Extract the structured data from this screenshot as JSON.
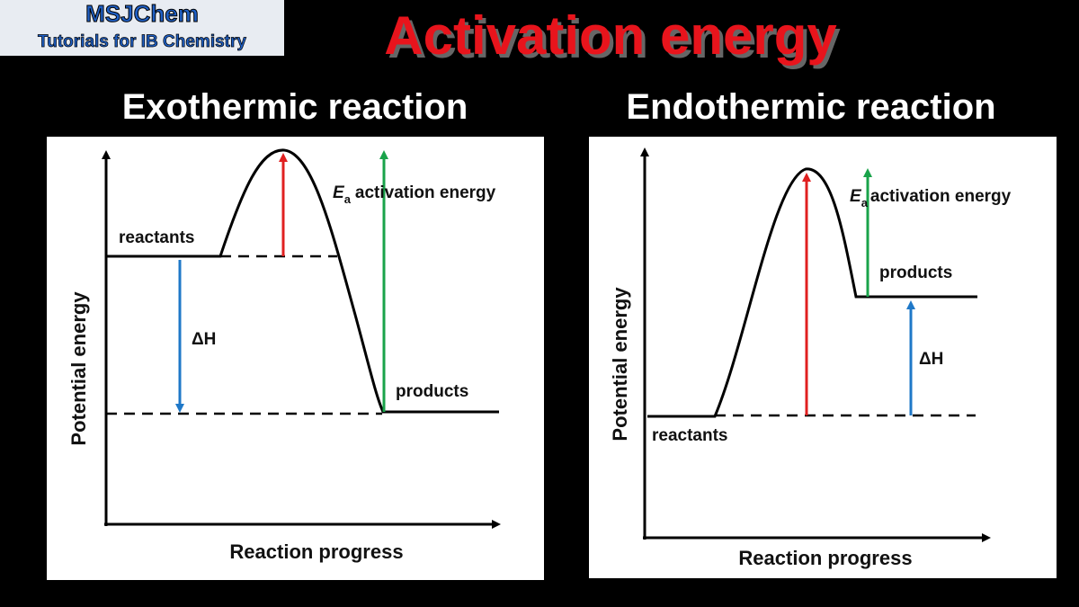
{
  "logo": {
    "name": "MSJChem",
    "tagline": "Tutorials for IB Chemistry"
  },
  "title": "Activation energy",
  "panels": [
    {
      "heading": "Exothermic reaction",
      "reactants": "reactants",
      "products": "products",
      "ea_symbol": "E",
      "ea_subscript": "a",
      "ea_label": "activation energy",
      "delta_h": "ΔH",
      "y_axis": "Potential energy",
      "x_axis": "Reaction progress"
    },
    {
      "heading": "Endothermic reaction",
      "reactants": "reactants",
      "products": "products",
      "ea_symbol": "E",
      "ea_subscript": "a",
      "ea_label": "activation energy",
      "delta_h": "ΔH",
      "y_axis": "Potential energy",
      "x_axis": "Reaction progress"
    }
  ]
}
